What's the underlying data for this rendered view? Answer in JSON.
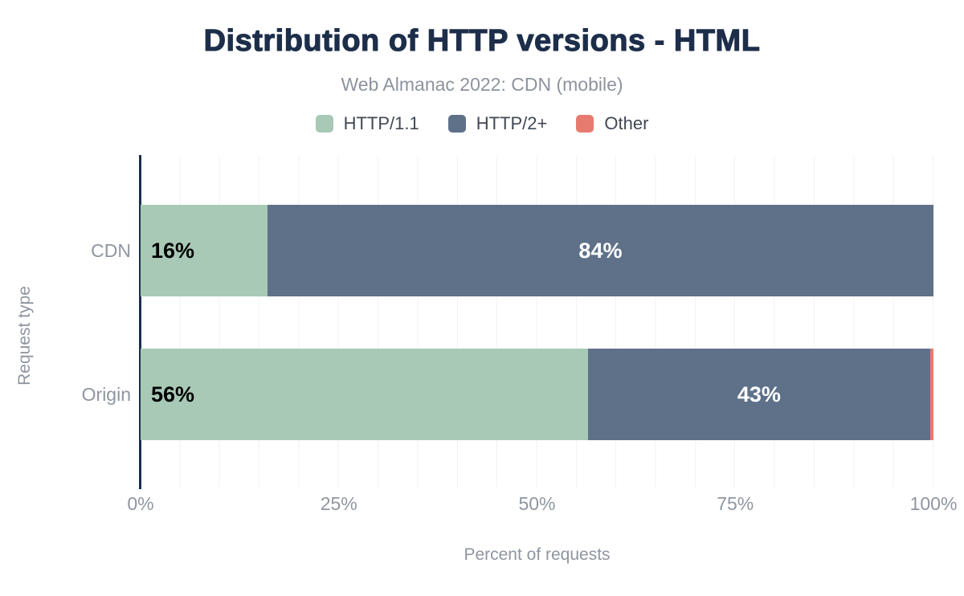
{
  "chart_data": {
    "type": "bar",
    "orientation": "horizontal",
    "stacked": true,
    "title": "Distribution of HTTP versions - HTML",
    "subtitle": "Web Almanac 2022: CDN (mobile)",
    "xlabel": "Percent of requests",
    "ylabel": "Request type",
    "xlim": [
      0,
      100
    ],
    "grid": "vertical, minor step 5%",
    "legend_position": "top-center",
    "categories": [
      "CDN",
      "Origin"
    ],
    "series": [
      {
        "name": "HTTP/1.1",
        "color": "#a8c9b6",
        "values": [
          16,
          56.4
        ]
      },
      {
        "name": "HTTP/2+",
        "color": "#5e7189",
        "values": [
          84,
          43.2
        ]
      },
      {
        "name": "Other",
        "color": "#e87b70",
        "values": [
          0,
          0.4
        ]
      }
    ],
    "value_labels": [
      [
        "16%",
        "84%",
        ""
      ],
      [
        "56%",
        "43%",
        ""
      ]
    ],
    "xticks": [
      "0%",
      "25%",
      "50%",
      "75%",
      "100%"
    ]
  },
  "colors": {
    "title": "#1d2e4a",
    "subtitle": "#8d939e",
    "axis_line": "#18304a",
    "axis_text": "#8f96a1",
    "gridline": "#f2f2f5",
    "label_on_light": "#000000",
    "label_on_dark": "#ffffff"
  }
}
